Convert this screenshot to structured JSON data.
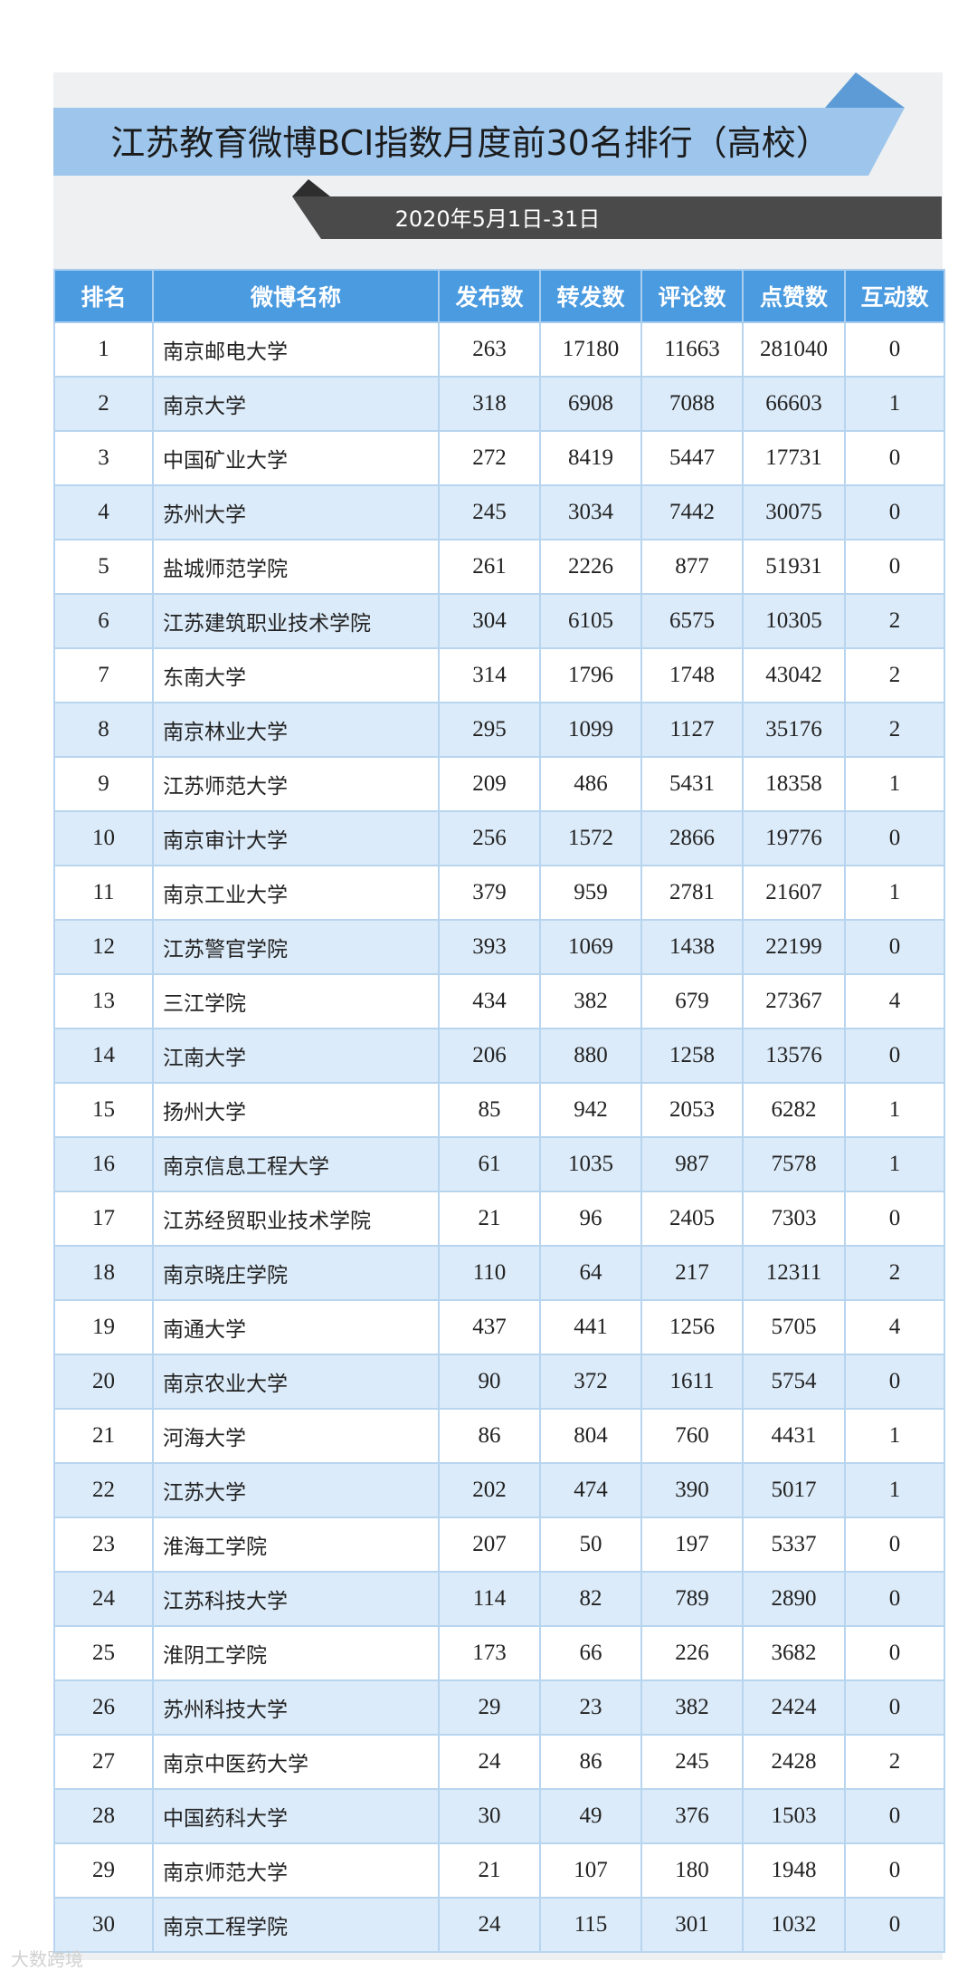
{
  "title": "江苏教育微博BCI指数月度前30名排行（高校）",
  "date_range": "2020年5月1日-31日",
  "colors": {
    "header_bg": "#4b9be0",
    "title_band": "#9ec6ec",
    "date_band": "#4a4a4a",
    "row_alt": "#dcebf9"
  },
  "watermark": "大数跨境",
  "table": {
    "columns": [
      "排名",
      "微博名称",
      "发布数",
      "转发数",
      "评论数",
      "点赞数",
      "互动数"
    ],
    "rows": [
      [
        "1",
        "南京邮电大学",
        "263",
        "17180",
        "11663",
        "281040",
        "0"
      ],
      [
        "2",
        "南京大学",
        "318",
        "6908",
        "7088",
        "66603",
        "1"
      ],
      [
        "3",
        "中国矿业大学",
        "272",
        "8419",
        "5447",
        "17731",
        "0"
      ],
      [
        "4",
        "苏州大学",
        "245",
        "3034",
        "7442",
        "30075",
        "0"
      ],
      [
        "5",
        "盐城师范学院",
        "261",
        "2226",
        "877",
        "51931",
        "0"
      ],
      [
        "6",
        "江苏建筑职业技术学院",
        "304",
        "6105",
        "6575",
        "10305",
        "2"
      ],
      [
        "7",
        "东南大学",
        "314",
        "1796",
        "1748",
        "43042",
        "2"
      ],
      [
        "8",
        "南京林业大学",
        "295",
        "1099",
        "1127",
        "35176",
        "2"
      ],
      [
        "9",
        "江苏师范大学",
        "209",
        "486",
        "5431",
        "18358",
        "1"
      ],
      [
        "10",
        "南京审计大学",
        "256",
        "1572",
        "2866",
        "19776",
        "0"
      ],
      [
        "11",
        "南京工业大学",
        "379",
        "959",
        "2781",
        "21607",
        "1"
      ],
      [
        "12",
        "江苏警官学院",
        "393",
        "1069",
        "1438",
        "22199",
        "0"
      ],
      [
        "13",
        "三江学院",
        "434",
        "382",
        "679",
        "27367",
        "4"
      ],
      [
        "14",
        "江南大学",
        "206",
        "880",
        "1258",
        "13576",
        "0"
      ],
      [
        "15",
        "扬州大学",
        "85",
        "942",
        "2053",
        "6282",
        "1"
      ],
      [
        "16",
        "南京信息工程大学",
        "61",
        "1035",
        "987",
        "7578",
        "1"
      ],
      [
        "17",
        "江苏经贸职业技术学院",
        "21",
        "96",
        "2405",
        "7303",
        "0"
      ],
      [
        "18",
        "南京晓庄学院",
        "110",
        "64",
        "217",
        "12311",
        "2"
      ],
      [
        "19",
        "南通大学",
        "437",
        "441",
        "1256",
        "5705",
        "4"
      ],
      [
        "20",
        "南京农业大学",
        "90",
        "372",
        "1611",
        "5754",
        "0"
      ],
      [
        "21",
        "河海大学",
        "86",
        "804",
        "760",
        "4431",
        "1"
      ],
      [
        "22",
        "江苏大学",
        "202",
        "474",
        "390",
        "5017",
        "1"
      ],
      [
        "23",
        "淮海工学院",
        "207",
        "50",
        "197",
        "5337",
        "0"
      ],
      [
        "24",
        "江苏科技大学",
        "114",
        "82",
        "789",
        "2890",
        "0"
      ],
      [
        "25",
        "淮阴工学院",
        "173",
        "66",
        "226",
        "3682",
        "0"
      ],
      [
        "26",
        "苏州科技大学",
        "29",
        "23",
        "382",
        "2424",
        "0"
      ],
      [
        "27",
        "南京中医药大学",
        "24",
        "86",
        "245",
        "2428",
        "2"
      ],
      [
        "28",
        "中国药科大学",
        "30",
        "49",
        "376",
        "1503",
        "0"
      ],
      [
        "29",
        "南京师范大学",
        "21",
        "107",
        "180",
        "1948",
        "0"
      ],
      [
        "30",
        "南京工程学院",
        "24",
        "115",
        "301",
        "1032",
        "0"
      ]
    ]
  }
}
